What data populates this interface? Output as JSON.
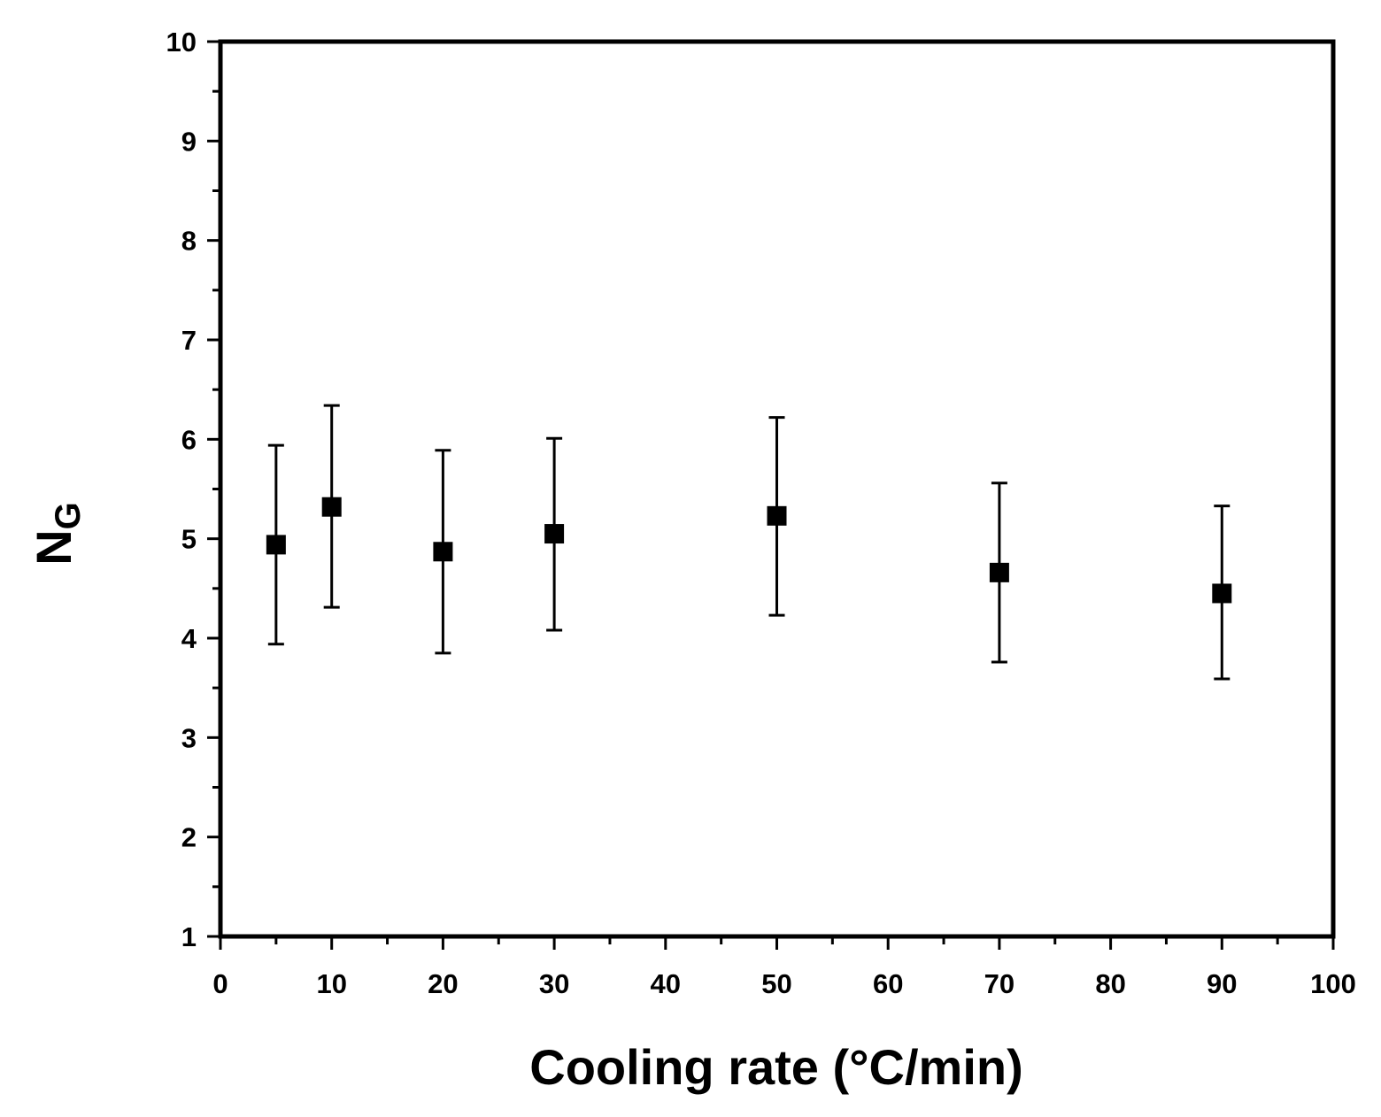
{
  "chart_data": {
    "type": "scatter",
    "title": "",
    "xlabel": "Cooling rate (°C/min)",
    "ylabel": {
      "main": "N",
      "sub": "G"
    },
    "xlim": [
      0,
      100
    ],
    "ylim": [
      1,
      10
    ],
    "x_ticks": [
      0,
      10,
      20,
      30,
      40,
      50,
      60,
      70,
      80,
      90,
      100
    ],
    "x_tick_labels": [
      "0",
      "10",
      "20",
      "30",
      "40",
      "50",
      "60",
      "70",
      "80",
      "90",
      "100"
    ],
    "y_ticks": [
      1,
      2,
      3,
      4,
      5,
      6,
      7,
      8,
      9,
      10
    ],
    "y_tick_labels": [
      "1",
      "2",
      "3",
      "4",
      "5",
      "6",
      "7",
      "8",
      "9",
      "10"
    ],
    "grid": false,
    "marker": "square",
    "marker_color": "#000000",
    "series": [
      {
        "points": [
          {
            "x": 5,
            "y": 4.94,
            "err_low": 3.94,
            "err_high": 5.94
          },
          {
            "x": 10,
            "y": 5.32,
            "err_low": 4.31,
            "err_high": 6.34
          },
          {
            "x": 20,
            "y": 4.87,
            "err_low": 3.85,
            "err_high": 5.89
          },
          {
            "x": 30,
            "y": 5.05,
            "err_low": 4.08,
            "err_high": 6.01
          },
          {
            "x": 50,
            "y": 5.23,
            "err_low": 4.23,
            "err_high": 6.22
          },
          {
            "x": 70,
            "y": 4.66,
            "err_low": 3.76,
            "err_high": 5.56
          },
          {
            "x": 90,
            "y": 4.45,
            "err_low": 3.59,
            "err_high": 5.33
          }
        ]
      }
    ]
  }
}
